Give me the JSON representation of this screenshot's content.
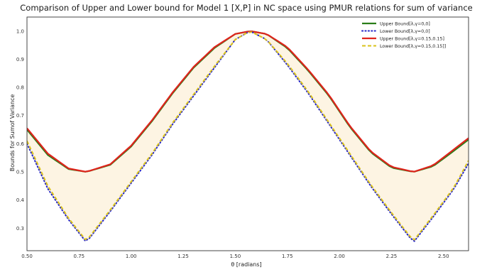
{
  "chart_data": {
    "type": "line",
    "title": "Comparison of Upper and Lower bound for Model 1 [X,P] in NC space using PMUR relations for sum of variance",
    "xlabel": "θ [radians]",
    "ylabel": "Bounds for Sumof Variance",
    "xlim": [
      0.5,
      2.62
    ],
    "ylim": [
      0.22,
      1.05
    ],
    "xticks": [
      "0.50",
      "0.75",
      "1.00",
      "1.25",
      "1.50",
      "1.75",
      "2.00",
      "2.25",
      "2.50"
    ],
    "yticks": [
      "0.3",
      "0.4",
      "0.5",
      "0.6",
      "0.7",
      "0.8",
      "0.9",
      "1.0"
    ],
    "grid": false,
    "legend_position": "top-right",
    "fill_between": {
      "upper_series": 0,
      "lower_series": 1,
      "color": "#fdf4e3"
    },
    "sampling": {
      "x_start": 0.5,
      "x_end": 2.62,
      "step": 0.02
    },
    "series": [
      {
        "name": "Upper Bound[λ,γ=0,0]",
        "color": "#2a7e19",
        "style": "solid",
        "x": [
          0.5,
          0.6,
          0.7,
          0.785,
          0.9,
          1.0,
          1.1,
          1.2,
          1.3,
          1.4,
          1.5,
          1.571,
          1.65,
          1.75,
          1.85,
          1.95,
          2.05,
          2.15,
          2.25,
          2.356,
          2.45,
          2.55,
          2.62
        ],
        "y": [
          0.65,
          0.56,
          0.51,
          0.5,
          0.525,
          0.59,
          0.68,
          0.78,
          0.87,
          0.94,
          0.99,
          1.0,
          0.99,
          0.94,
          0.86,
          0.77,
          0.66,
          0.57,
          0.515,
          0.5,
          0.52,
          0.575,
          0.615
        ]
      },
      {
        "name": "Lower Bound[λ,γ=0,0]",
        "color": "#2424c8",
        "style": "dotted",
        "x": [
          0.5,
          0.6,
          0.7,
          0.785,
          0.9,
          1.0,
          1.1,
          1.2,
          1.3,
          1.4,
          1.5,
          1.571,
          1.65,
          1.75,
          1.85,
          1.95,
          2.05,
          2.15,
          2.25,
          2.356,
          2.45,
          2.55,
          2.62
        ],
        "y": [
          0.6,
          0.44,
          0.33,
          0.25,
          0.36,
          0.46,
          0.56,
          0.67,
          0.77,
          0.87,
          0.97,
          1.0,
          0.97,
          0.88,
          0.78,
          0.67,
          0.56,
          0.45,
          0.35,
          0.25,
          0.34,
          0.44,
          0.53
        ]
      },
      {
        "name": "Upper Bound[λ,γ=0.15,0.15]",
        "color": "#e0231c",
        "style": "solid",
        "x": [
          0.5,
          0.6,
          0.7,
          0.785,
          0.9,
          1.0,
          1.1,
          1.2,
          1.3,
          1.4,
          1.5,
          1.571,
          1.65,
          1.75,
          1.85,
          1.95,
          2.05,
          2.15,
          2.25,
          2.356,
          2.45,
          2.55,
          2.62
        ],
        "y": [
          0.655,
          0.565,
          0.512,
          0.5,
          0.527,
          0.593,
          0.683,
          0.783,
          0.873,
          0.943,
          0.99,
          1.0,
          0.99,
          0.943,
          0.863,
          0.773,
          0.663,
          0.573,
          0.518,
          0.5,
          0.523,
          0.58,
          0.62
        ]
      },
      {
        "name": "Lower Bound[λ,γ=0.15,0.15]]",
        "color": "#d9c21a",
        "style": "dashed",
        "x": [
          0.5,
          0.6,
          0.7,
          0.785,
          0.9,
          1.0,
          1.1,
          1.2,
          1.3,
          1.4,
          1.5,
          1.571,
          1.65,
          1.75,
          1.85,
          1.95,
          2.05,
          2.15,
          2.25,
          2.356,
          2.45,
          2.55,
          2.62
        ],
        "y": [
          0.61,
          0.45,
          0.335,
          0.255,
          0.365,
          0.465,
          0.565,
          0.675,
          0.775,
          0.875,
          0.97,
          1.0,
          0.97,
          0.885,
          0.785,
          0.675,
          0.565,
          0.455,
          0.355,
          0.255,
          0.345,
          0.445,
          0.54
        ]
      }
    ]
  }
}
